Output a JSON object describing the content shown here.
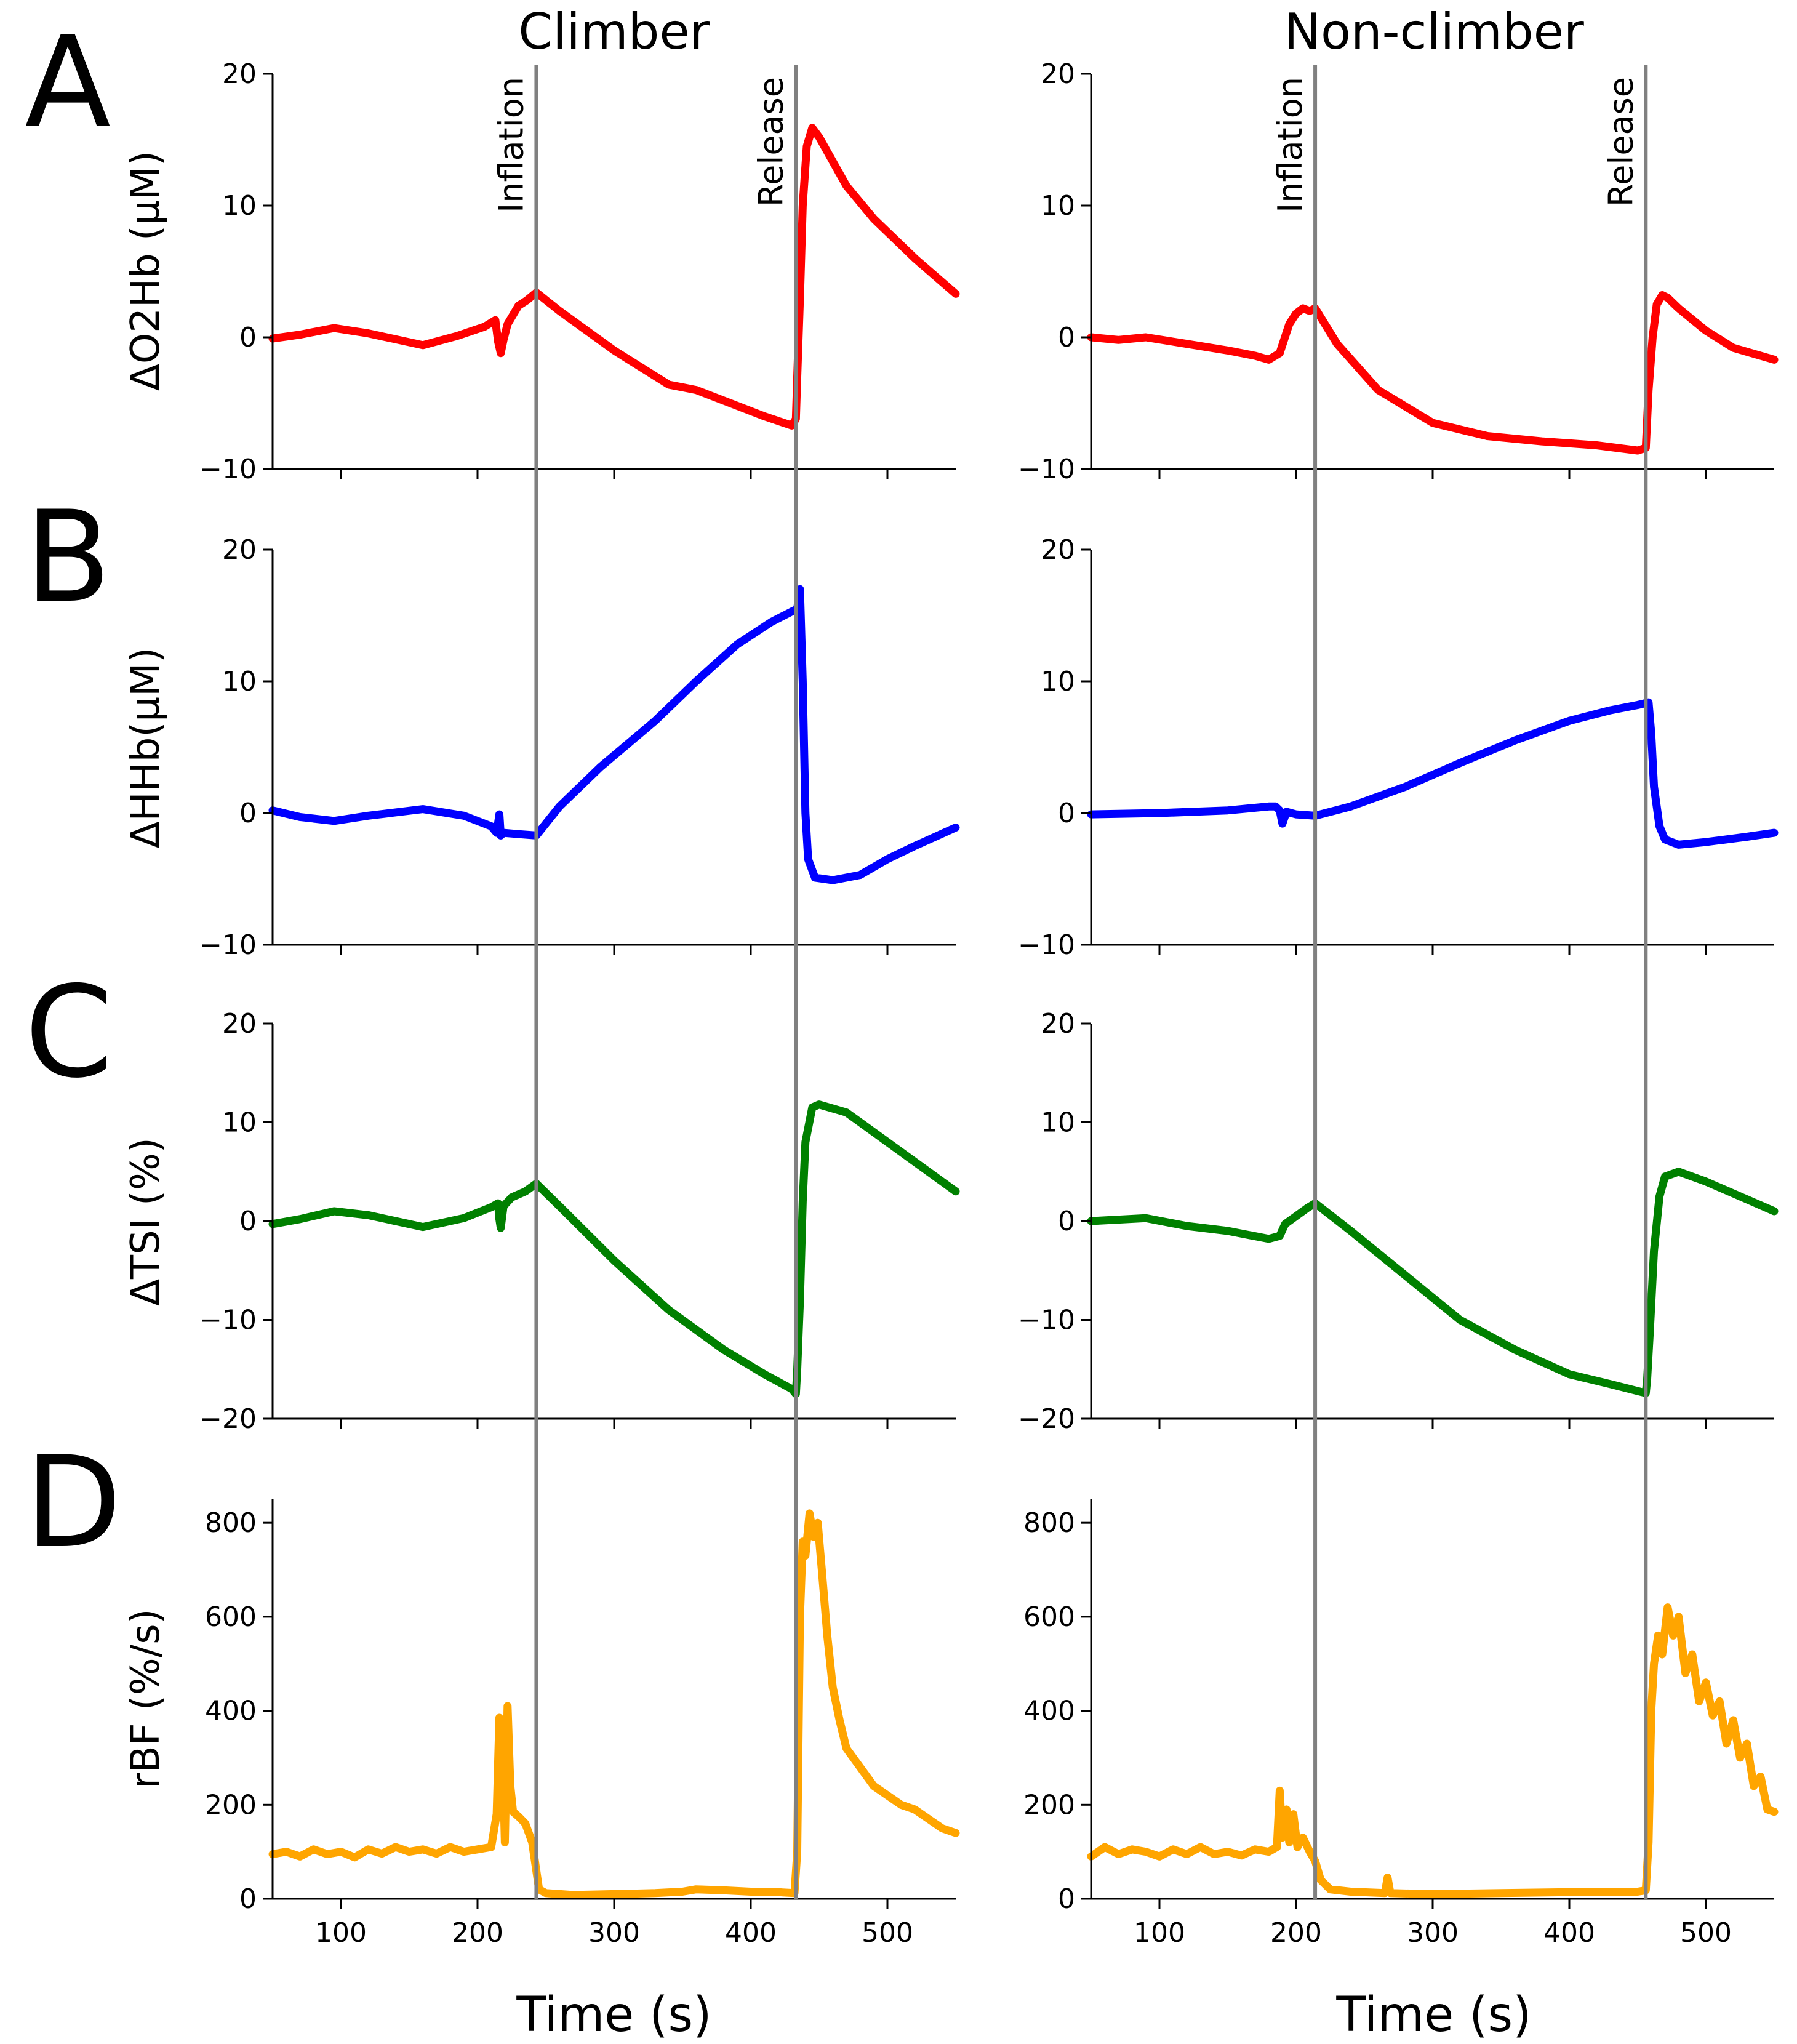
{
  "figure": {
    "column_titles": [
      "Climber",
      "Non-climber"
    ],
    "panel_letters": [
      "A",
      "B",
      "C",
      "D"
    ],
    "xlabel": "Time (s)",
    "event_labels": [
      "Inflation",
      "Release"
    ],
    "colors": {
      "O2Hb": "#ff0000",
      "HHb": "#0000ff",
      "TSI": "#008000",
      "rBF": "#ffa500",
      "event_line": "#808080"
    }
  },
  "chart_data": [
    {
      "type": "line",
      "panel": "A",
      "column": "Climber",
      "ylabel": "ΔO2Hb (μM)",
      "xlim": [
        50,
        550
      ],
      "ylim": [
        -10,
        20
      ],
      "xticks": [
        100,
        200,
        300,
        400,
        500
      ],
      "xtick_labels": [],
      "yticks": [
        -10,
        0,
        10,
        20
      ],
      "ytick_labels": [
        "−10",
        "0",
        "10",
        "20"
      ],
      "events": [
        {
          "label": "Inflation",
          "x": 243
        },
        {
          "label": "Release",
          "x": 433
        }
      ],
      "series": [
        {
          "name": "ΔO2Hb",
          "color": "#ff0000",
          "x": [
            50,
            70,
            95,
            120,
            160,
            185,
            205,
            213,
            215,
            217,
            219,
            222,
            226,
            230,
            236,
            243,
            260,
            300,
            340,
            350,
            360,
            380,
            410,
            430,
            433,
            434,
            436,
            438,
            441,
            445,
            450,
            470,
            490,
            520,
            550
          ],
          "y": [
            -0.1,
            0.2,
            0.7,
            0.3,
            -0.6,
            0.1,
            0.8,
            1.3,
            -0.3,
            -1.2,
            -0.2,
            1.0,
            1.7,
            2.4,
            2.8,
            3.4,
            2.0,
            -1.0,
            -3.6,
            -3.8,
            -4.0,
            -4.8,
            -6.0,
            -6.7,
            -6.2,
            -3.0,
            3.0,
            10.0,
            14.5,
            15.9,
            15.2,
            11.5,
            9.0,
            6.0,
            3.3
          ]
        }
      ]
    },
    {
      "type": "line",
      "panel": "A",
      "column": "Non-climber",
      "ylabel": "ΔO2Hb (μM)",
      "xlim": [
        50,
        550
      ],
      "ylim": [
        -10,
        20
      ],
      "xticks": [
        100,
        200,
        300,
        400,
        500
      ],
      "xtick_labels": [],
      "yticks": [
        -10,
        0,
        10,
        20
      ],
      "ytick_labels": [
        "−10",
        "0",
        "10",
        "20"
      ],
      "events": [
        {
          "label": "Inflation",
          "x": 214
        },
        {
          "label": "Release",
          "x": 456
        }
      ],
      "series": [
        {
          "name": "ΔO2Hb",
          "color": "#ff0000",
          "x": [
            50,
            70,
            90,
            120,
            150,
            170,
            180,
            188,
            195,
            200,
            205,
            210,
            214,
            230,
            260,
            300,
            340,
            380,
            420,
            450,
            456,
            458,
            461,
            464,
            468,
            472,
            480,
            500,
            520,
            550
          ],
          "y": [
            0,
            -0.2,
            0,
            -0.5,
            -1.0,
            -1.4,
            -1.7,
            -1.2,
            1.0,
            1.8,
            2.2,
            2.0,
            2.2,
            -0.5,
            -4.0,
            -6.5,
            -7.5,
            -7.9,
            -8.2,
            -8.6,
            -8.4,
            -4.0,
            0.0,
            2.5,
            3.2,
            3.0,
            2.2,
            0.5,
            -0.8,
            -1.7
          ]
        }
      ]
    },
    {
      "type": "line",
      "panel": "B",
      "column": "Climber",
      "ylabel": "ΔHHb(μM)",
      "xlim": [
        50,
        550
      ],
      "ylim": [
        -10,
        20
      ],
      "xticks": [
        100,
        200,
        300,
        400,
        500
      ],
      "xtick_labels": [],
      "yticks": [
        -10,
        0,
        10,
        20
      ],
      "ytick_labels": [
        "−10",
        "0",
        "10",
        "20"
      ],
      "events": [
        {
          "label": "Inflation",
          "x": 243
        },
        {
          "label": "Release",
          "x": 433
        }
      ],
      "series": [
        {
          "name": "ΔHHb",
          "color": "#0000ff",
          "x": [
            50,
            70,
            95,
            120,
            160,
            190,
            210,
            214,
            216,
            217,
            219,
            230,
            243,
            260,
            290,
            330,
            360,
            390,
            415,
            430,
            434,
            436,
            438,
            440,
            442,
            447,
            460,
            480,
            500,
            520,
            550
          ],
          "y": [
            0.2,
            -0.3,
            -0.6,
            -0.2,
            0.3,
            -0.2,
            -1.0,
            -1.5,
            -0.1,
            -1.7,
            -1.5,
            -1.6,
            -1.7,
            0.5,
            3.5,
            7.0,
            10.0,
            12.8,
            14.5,
            15.3,
            15.5,
            17.0,
            10.0,
            0.0,
            -3.5,
            -4.9,
            -5.1,
            -4.7,
            -3.5,
            -2.5,
            -1.1
          ]
        }
      ]
    },
    {
      "type": "line",
      "panel": "B",
      "column": "Non-climber",
      "ylabel": "ΔHHb(μM)",
      "xlim": [
        50,
        550
      ],
      "ylim": [
        -10,
        20
      ],
      "xticks": [
        100,
        200,
        300,
        400,
        500
      ],
      "xtick_labels": [],
      "yticks": [
        -10,
        0,
        10,
        20
      ],
      "ytick_labels": [
        "−10",
        "0",
        "10",
        "20"
      ],
      "events": [
        {
          "label": "Inflation",
          "x": 214
        },
        {
          "label": "Release",
          "x": 456
        }
      ],
      "series": [
        {
          "name": "ΔHHb",
          "color": "#0000ff",
          "x": [
            50,
            100,
            150,
            180,
            185,
            188,
            190,
            193,
            200,
            214,
            240,
            280,
            320,
            360,
            400,
            430,
            450,
            458,
            460,
            462,
            466,
            470,
            480,
            500,
            530,
            550
          ],
          "y": [
            -0.1,
            0,
            0.2,
            0.5,
            0.5,
            0.2,
            -0.8,
            0.1,
            -0.1,
            -0.2,
            0.5,
            2.0,
            3.8,
            5.5,
            7.0,
            7.8,
            8.2,
            8.4,
            6.0,
            2.0,
            -1.0,
            -2.0,
            -2.4,
            -2.2,
            -1.8,
            -1.5
          ]
        }
      ]
    },
    {
      "type": "line",
      "panel": "C",
      "column": "Climber",
      "ylabel": "ΔTSI (%)",
      "xlim": [
        50,
        550
      ],
      "ylim": [
        -20,
        20
      ],
      "xticks": [
        100,
        200,
        300,
        400,
        500
      ],
      "xtick_labels": [],
      "yticks": [
        -20,
        -10,
        0,
        10,
        20
      ],
      "ytick_labels": [
        "−20",
        "−10",
        "0",
        "10",
        "20"
      ],
      "events": [
        {
          "label": "Inflation",
          "x": 243
        },
        {
          "label": "Release",
          "x": 433
        }
      ],
      "series": [
        {
          "name": "ΔTSI",
          "color": "#008000",
          "x": [
            50,
            70,
            95,
            120,
            160,
            190,
            210,
            215,
            216,
            217,
            219,
            225,
            235,
            243,
            260,
            300,
            340,
            380,
            410,
            430,
            433,
            434,
            436,
            438,
            440,
            445,
            450,
            470,
            490,
            520,
            550
          ],
          "y": [
            -0.3,
            0.2,
            1.0,
            0.6,
            -0.6,
            0.3,
            1.4,
            1.8,
            0.2,
            -0.7,
            1.5,
            2.4,
            3.0,
            3.8,
            1.5,
            -4.0,
            -9.0,
            -13.0,
            -15.5,
            -17.0,
            -17.5,
            -15.0,
            -8.0,
            2.0,
            8.0,
            11.5,
            11.8,
            11.0,
            9.0,
            6.0,
            3.0
          ]
        }
      ]
    },
    {
      "type": "line",
      "panel": "C",
      "column": "Non-climber",
      "ylabel": "ΔTSI (%)",
      "xlim": [
        50,
        550
      ],
      "ylim": [
        -20,
        20
      ],
      "xticks": [
        100,
        200,
        300,
        400,
        500
      ],
      "xtick_labels": [],
      "yticks": [
        -20,
        -10,
        0,
        10,
        20
      ],
      "ytick_labels": [
        "−20",
        "−10",
        "0",
        "10",
        "20"
      ],
      "events": [
        {
          "label": "Inflation",
          "x": 214
        },
        {
          "label": "Release",
          "x": 456
        }
      ],
      "series": [
        {
          "name": "ΔTSI",
          "color": "#008000",
          "x": [
            50,
            90,
            120,
            150,
            180,
            188,
            192,
            200,
            208,
            214,
            240,
            280,
            320,
            360,
            400,
            430,
            450,
            456,
            457,
            459,
            462,
            466,
            470,
            480,
            500,
            530,
            550
          ],
          "y": [
            0,
            0.3,
            -0.5,
            -1.0,
            -1.8,
            -1.5,
            -0.3,
            0.5,
            1.3,
            1.8,
            -1.0,
            -5.5,
            -10.0,
            -13.0,
            -15.5,
            -16.5,
            -17.2,
            -17.4,
            -16.0,
            -11.0,
            -3.0,
            2.5,
            4.5,
            5.0,
            4.0,
            2.2,
            1.0
          ]
        }
      ]
    },
    {
      "type": "line",
      "panel": "D",
      "column": "Climber",
      "ylabel": "rBF (%/s)",
      "xlabel": "Time (s)",
      "xlim": [
        50,
        550
      ],
      "ylim": [
        0,
        850
      ],
      "xticks": [
        100,
        200,
        300,
        400,
        500
      ],
      "xtick_labels": [
        "100",
        "200",
        "300",
        "400",
        "500"
      ],
      "yticks": [
        0,
        200,
        400,
        600,
        800
      ],
      "ytick_labels": [
        "0",
        "200",
        "400",
        "600",
        "800"
      ],
      "events": [
        {
          "label": "Inflation",
          "x": 243
        },
        {
          "label": "Release",
          "x": 433
        }
      ],
      "series": [
        {
          "name": "rBF",
          "color": "#ffa500",
          "x": [
            50,
            60,
            70,
            80,
            90,
            100,
            110,
            120,
            130,
            140,
            150,
            160,
            170,
            180,
            190,
            200,
            210,
            214,
            216,
            218,
            220,
            222,
            224,
            226,
            230,
            235,
            240,
            243,
            245,
            250,
            270,
            300,
            330,
            350,
            360,
            380,
            400,
            420,
            432,
            434,
            436,
            438,
            440,
            443,
            446,
            449,
            452,
            456,
            460,
            465,
            470,
            480,
            490,
            500,
            510,
            520,
            530,
            540,
            550
          ],
          "y": [
            95,
            100,
            90,
            105,
            95,
            100,
            88,
            105,
            96,
            110,
            100,
            105,
            96,
            110,
            100,
            105,
            110,
            180,
            385,
            350,
            120,
            410,
            240,
            185,
            175,
            160,
            120,
            60,
            20,
            12,
            8,
            10,
            12,
            15,
            20,
            18,
            15,
            14,
            12,
            100,
            600,
            760,
            730,
            820,
            770,
            800,
            700,
            560,
            450,
            380,
            320,
            280,
            240,
            220,
            200,
            190,
            170,
            150,
            140
          ]
        }
      ]
    },
    {
      "type": "line",
      "panel": "D",
      "column": "Non-climber",
      "ylabel": "rBF (%/s)",
      "xlabel": "Time (s)",
      "xlim": [
        50,
        550
      ],
      "ylim": [
        0,
        850
      ],
      "xticks": [
        100,
        200,
        300,
        400,
        500
      ],
      "xtick_labels": [
        "100",
        "200",
        "300",
        "400",
        "500"
      ],
      "yticks": [
        0,
        200,
        400,
        600,
        800
      ],
      "ytick_labels": [
        "0",
        "200",
        "400",
        "600",
        "800"
      ],
      "events": [
        {
          "label": "Inflation",
          "x": 214
        },
        {
          "label": "Release",
          "x": 456
        }
      ],
      "series": [
        {
          "name": "rBF",
          "color": "#ffa500",
          "x": [
            50,
            60,
            70,
            80,
            90,
            100,
            110,
            120,
            130,
            140,
            150,
            160,
            170,
            180,
            186,
            188,
            190,
            193,
            195,
            198,
            201,
            205,
            210,
            214,
            218,
            225,
            240,
            265,
            267,
            269,
            300,
            350,
            400,
            450,
            456,
            458,
            460,
            462,
            465,
            468,
            472,
            476,
            480,
            485,
            490,
            495,
            500,
            505,
            510,
            515,
            520,
            525,
            530,
            535,
            540,
            545,
            550
          ],
          "y": [
            90,
            110,
            95,
            105,
            100,
            90,
            105,
            95,
            110,
            95,
            100,
            92,
            105,
            100,
            110,
            230,
            130,
            190,
            120,
            180,
            110,
            130,
            100,
            80,
            40,
            20,
            15,
            12,
            45,
            12,
            10,
            12,
            14,
            15,
            18,
            120,
            400,
            500,
            560,
            520,
            620,
            560,
            600,
            480,
            520,
            420,
            460,
            390,
            420,
            330,
            380,
            300,
            330,
            240,
            260,
            190,
            185
          ]
        }
      ]
    }
  ]
}
